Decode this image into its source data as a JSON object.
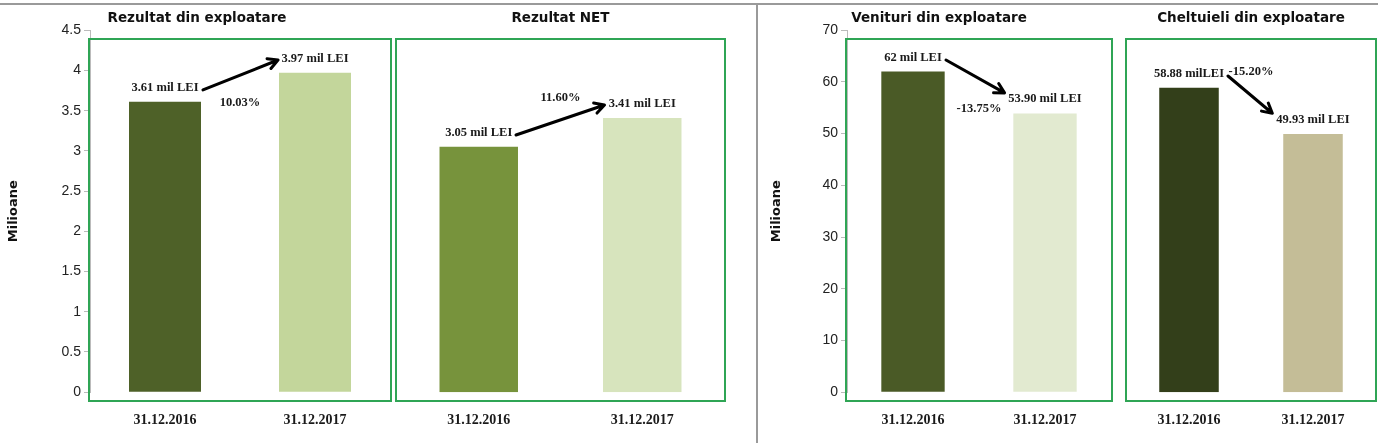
{
  "chart_data": [
    {
      "type": "bar",
      "title": "Rezultat din exploatare",
      "ylabel": "Milioane",
      "categories": [
        "31.12.2016",
        "31.12.2017"
      ],
      "values": [
        3.61,
        3.97
      ],
      "colors": [
        "#4e6128",
        "#c3d69b"
      ],
      "value_labels": [
        "3.61 mil LEI",
        "3.97 mil LEI"
      ],
      "annotations": [
        "10.03%"
      ],
      "ylim": [
        0,
        4.5
      ],
      "yticks": [
        0,
        0.5,
        1,
        1.5,
        2,
        2.5,
        3,
        3.5,
        4,
        4.5
      ]
    },
    {
      "type": "bar",
      "title": "Rezultat NET",
      "categories": [
        "31.12.2016",
        "31.12.2017"
      ],
      "values": [
        3.05,
        3.41
      ],
      "colors": [
        "#77933c",
        "#d7e4bd"
      ],
      "value_labels": [
        "3.05 mil LEI",
        "3.41 mil LEI"
      ],
      "annotations": [
        "11.60%"
      ],
      "ylim": [
        0,
        4.5
      ],
      "yticks": [
        0,
        0.5,
        1,
        1.5,
        2,
        2.5,
        3,
        3.5,
        4,
        4.5
      ],
      "tick_labels": "x"
    },
    {
      "type": "bar",
      "title": "Venituri din exploatare",
      "ylabel": "Milioane",
      "categories": [
        "31.12.2016",
        "31.12.2017"
      ],
      "values": [
        62,
        53.9
      ],
      "colors": [
        "#4a5a26",
        "#e2ead0"
      ],
      "value_labels": [
        "62 mil LEI",
        "53.90 mil LEI"
      ],
      "annotations": [
        "-13.75%"
      ],
      "ylim": [
        0,
        70
      ],
      "yticks": [
        0,
        10,
        20,
        30,
        40,
        50,
        60,
        70
      ]
    },
    {
      "type": "bar",
      "title": "Cheltuieli din exploatare",
      "categories": [
        "31.12.2016",
        "31.12.2017"
      ],
      "values": [
        58.88,
        49.93
      ],
      "colors": [
        "#333f1a",
        "#c4bd97"
      ],
      "value_labels": [
        "58.88 milLEI",
        "49.93 mil LEI"
      ],
      "annotations": [
        "-15.20%"
      ],
      "ylim": [
        0,
        70
      ],
      "yticks": [
        0,
        10,
        20,
        30,
        40,
        50,
        60,
        70
      ],
      "tick_labels": "x"
    }
  ]
}
